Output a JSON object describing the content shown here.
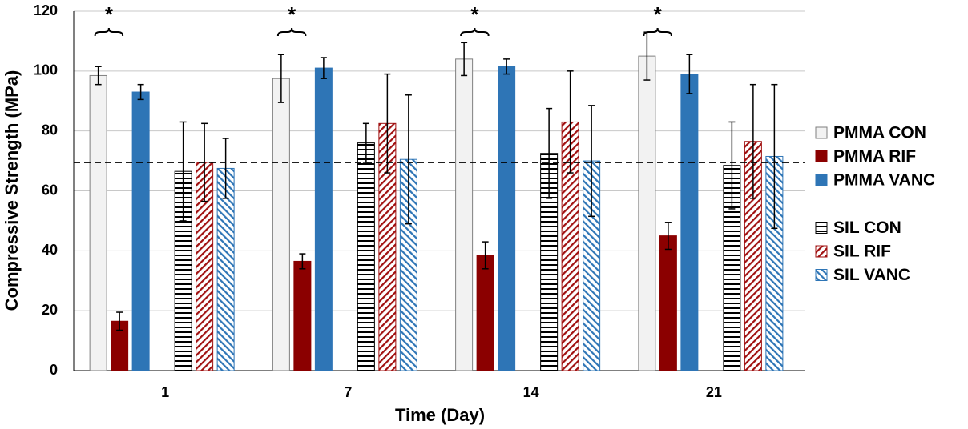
{
  "chart_data": {
    "type": "bar",
    "x_label": "Time (Day)",
    "y_label": "Compressive Strength (MPa)",
    "categories": [
      "1",
      "7",
      "14",
      "21"
    ],
    "series": [
      {
        "name": "PMMA CON",
        "color": "#f2f2f2",
        "pattern": "solid",
        "values": [
          98.5,
          97.5,
          104,
          105
        ],
        "errors": [
          3,
          8,
          5.5,
          8
        ]
      },
      {
        "name": "PMMA RIF",
        "color": "#8b0000",
        "pattern": "solid",
        "values": [
          16.5,
          36.5,
          38.5,
          45
        ],
        "errors": [
          3,
          2.5,
          4.5,
          4.5
        ]
      },
      {
        "name": "PMMA VANC",
        "color": "#2e75b6",
        "pattern": "solid",
        "values": [
          93,
          101,
          101.5,
          99
        ],
        "errors": [
          2.5,
          3.5,
          2.5,
          6.5
        ]
      },
      {
        "name": "SIL CON",
        "color": "#000000",
        "pattern": "horizontal",
        "values": [
          66.5,
          76,
          72.5,
          68.5
        ],
        "errors": [
          16.5,
          6.5,
          15,
          14.5
        ]
      },
      {
        "name": "SIL RIF",
        "color": "#a01010",
        "pattern": "diagonal-up",
        "values": [
          69.5,
          82.5,
          83,
          76.5
        ],
        "errors": [
          13,
          16.5,
          17,
          19
        ]
      },
      {
        "name": "SIL VANC",
        "color": "#2e75b6",
        "pattern": "diagonal-down",
        "values": [
          67.5,
          70.5,
          70,
          71.5
        ],
        "errors": [
          10,
          21.5,
          18.5,
          24
        ]
      }
    ],
    "reference_line": 69.5,
    "annotations": [
      "*",
      "*",
      "*",
      "*"
    ],
    "ylim": [
      0,
      120
    ],
    "yticks": [
      0,
      20,
      40,
      60,
      80,
      100,
      120
    ],
    "grid": true
  }
}
